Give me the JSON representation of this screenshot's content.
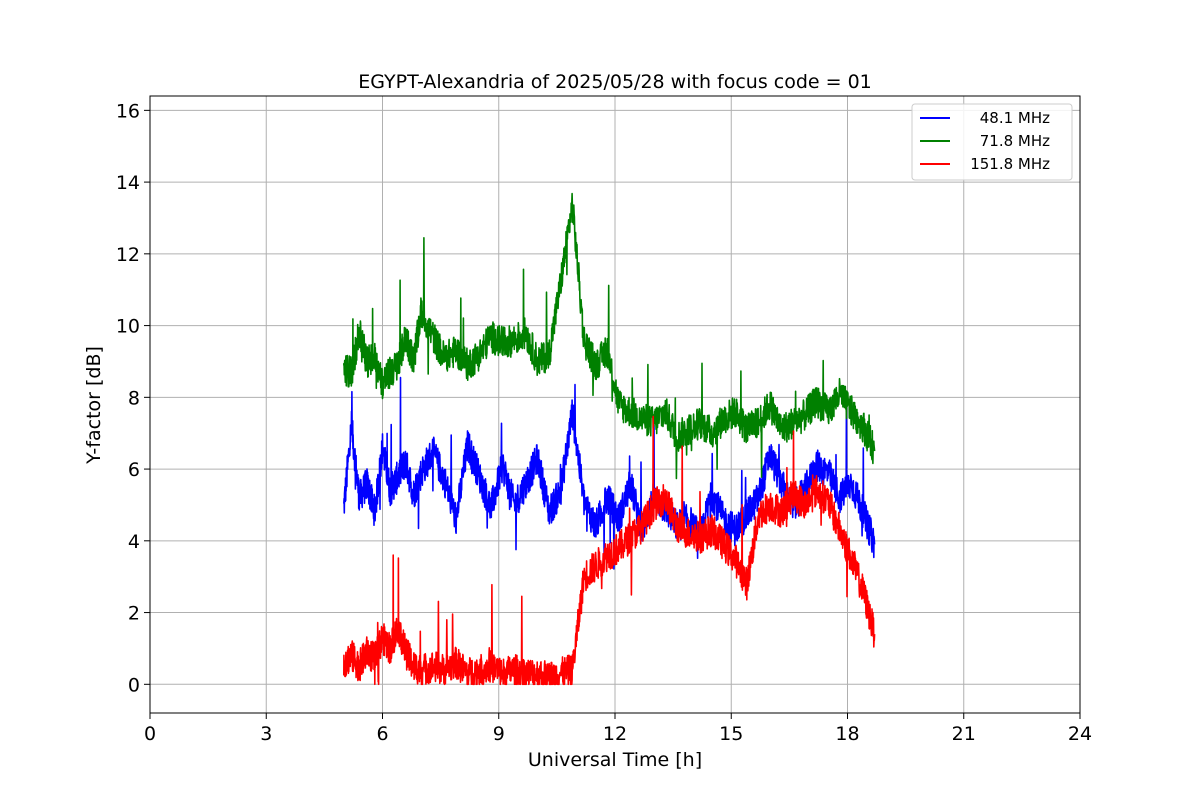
{
  "chart_data": {
    "type": "line",
    "title": "EGYPT-Alexandria of 2025/05/28 with focus code = 01",
    "xlabel": "Universal Time [h]",
    "ylabel": "Y-factor [dB]",
    "xlim": [
      0,
      24
    ],
    "ylim": [
      -0.8,
      16.4
    ],
    "xticks": [
      0,
      3,
      6,
      9,
      12,
      15,
      18,
      21,
      24
    ],
    "yticks": [
      0,
      2,
      4,
      6,
      8,
      10,
      12,
      14,
      16
    ],
    "grid": true,
    "legend_position": "top-right",
    "series": [
      {
        "name": "48.1 MHz",
        "color": "#0000ff",
        "x": [
          5.0,
          5.2,
          5.4,
          5.6,
          5.8,
          6.0,
          6.2,
          6.4,
          6.6,
          6.8,
          7.0,
          7.3,
          7.6,
          7.9,
          8.2,
          8.5,
          8.8,
          9.1,
          9.4,
          9.7,
          10.0,
          10.3,
          10.6,
          10.9,
          11.2,
          11.5,
          11.8,
          12.1,
          12.4,
          12.7,
          13.0,
          13.3,
          13.6,
          13.9,
          14.2,
          14.5,
          14.8,
          15.1,
          15.4,
          15.7,
          16.0,
          16.3,
          16.6,
          16.9,
          17.2,
          17.5,
          17.8,
          18.1,
          18.4,
          18.7
        ],
        "y": [
          4.9,
          7.2,
          5.2,
          5.6,
          4.8,
          6.6,
          5.4,
          5.8,
          6.2,
          5.3,
          5.9,
          6.5,
          5.7,
          4.6,
          6.7,
          5.8,
          4.9,
          6.1,
          5.0,
          5.6,
          6.3,
          4.8,
          5.4,
          7.6,
          5.1,
          4.4,
          5.2,
          4.6,
          5.6,
          4.3,
          5.2,
          4.9,
          4.4,
          4.6,
          4.1,
          5.3,
          4.6,
          4.3,
          4.7,
          5.2,
          6.4,
          5.6,
          4.9,
          5.4,
          6.1,
          5.9,
          5.2,
          5.6,
          4.8,
          3.9
        ]
      },
      {
        "name": "71.8 MHz",
        "color": "#008000",
        "x": [
          5.0,
          5.2,
          5.4,
          5.6,
          5.8,
          6.0,
          6.2,
          6.4,
          6.6,
          6.8,
          7.0,
          7.3,
          7.6,
          7.9,
          8.2,
          8.5,
          8.8,
          9.1,
          9.4,
          9.7,
          10.0,
          10.3,
          10.6,
          10.9,
          11.2,
          11.5,
          11.8,
          12.1,
          12.4,
          12.7,
          13.0,
          13.3,
          13.6,
          13.9,
          14.2,
          14.5,
          14.8,
          15.1,
          15.4,
          15.7,
          16.0,
          16.3,
          16.6,
          16.9,
          17.2,
          17.5,
          17.8,
          18.1,
          18.4,
          18.7
        ],
        "y": [
          8.8,
          8.7,
          9.8,
          9.0,
          9.1,
          8.4,
          8.7,
          8.9,
          9.7,
          9.0,
          10.4,
          9.7,
          9.1,
          9.3,
          8.9,
          9.2,
          9.7,
          9.5,
          9.6,
          9.8,
          9.0,
          9.2,
          11.2,
          13.4,
          9.6,
          8.9,
          9.3,
          7.8,
          7.6,
          7.4,
          7.3,
          7.6,
          6.9,
          7.1,
          7.3,
          7.0,
          7.4,
          7.6,
          7.1,
          7.3,
          7.8,
          7.1,
          7.3,
          7.5,
          7.9,
          7.6,
          8.1,
          7.6,
          7.2,
          6.5
        ]
      },
      {
        "name": "151.8 MHz",
        "color": "#ff0000",
        "x": [
          5.0,
          5.2,
          5.4,
          5.6,
          5.8,
          6.0,
          6.2,
          6.4,
          6.6,
          6.8,
          7.0,
          7.3,
          7.6,
          7.9,
          8.2,
          8.5,
          8.8,
          9.1,
          9.4,
          9.7,
          10.0,
          10.3,
          10.6,
          10.9,
          11.2,
          11.5,
          11.8,
          12.1,
          12.4,
          12.7,
          13.0,
          13.3,
          13.6,
          13.9,
          14.2,
          14.5,
          14.8,
          15.1,
          15.4,
          15.7,
          16.0,
          16.3,
          16.6,
          16.9,
          17.2,
          17.5,
          17.8,
          18.1,
          18.4,
          18.7
        ],
        "y": [
          0.6,
          0.8,
          0.5,
          0.9,
          0.7,
          1.3,
          1.0,
          1.6,
          0.9,
          0.5,
          0.4,
          0.5,
          0.4,
          0.6,
          0.3,
          0.4,
          0.5,
          0.3,
          0.4,
          0.3,
          0.3,
          0.2,
          0.3,
          0.4,
          3.0,
          3.3,
          3.6,
          3.8,
          4.1,
          4.4,
          5.0,
          5.2,
          4.4,
          4.2,
          4.1,
          4.3,
          3.9,
          3.5,
          2.8,
          4.7,
          5.0,
          4.8,
          5.3,
          5.0,
          5.4,
          5.1,
          4.3,
          3.5,
          2.6,
          1.4
        ]
      }
    ]
  }
}
